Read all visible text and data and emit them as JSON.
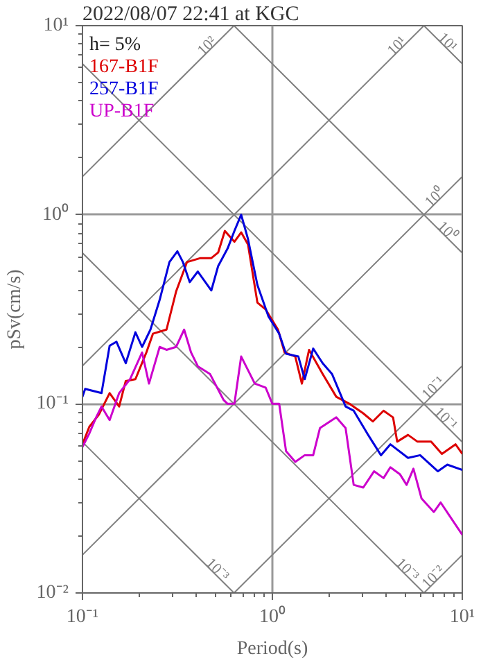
{
  "chart_data": {
    "type": "line",
    "title": "2022/08/07 22:41 at KGC",
    "xlabel": "Period(s)",
    "ylabel": "pSv(cm/s)",
    "log": "xy",
    "grid": true,
    "line_style": "solid",
    "marker": "none",
    "xlim": [
      0.1,
      10
    ],
    "ylim": [
      0.01,
      10
    ],
    "xticks": [
      {
        "value": 0.1,
        "label": "10⁻¹"
      },
      {
        "value": 1,
        "label": "10⁰"
      },
      {
        "value": 10,
        "label": "10¹"
      }
    ],
    "yticks": [
      {
        "value": 0.01,
        "label": "10⁻²"
      },
      {
        "value": 0.1,
        "label": "10⁻¹"
      },
      {
        "value": 1,
        "label": "10⁰"
      },
      {
        "value": 10,
        "label": "10¹"
      }
    ],
    "annotations": [
      "h= 5%"
    ],
    "series": [
      {
        "type": "line",
        "name": "10²",
        "color": "#808080",
        "x": [
          0.1,
          0.628
        ],
        "values": [
          1.592,
          10
        ]
      },
      {
        "type": "line",
        "name": "10¹",
        "color": "#808080",
        "x": [
          0.1,
          6.28
        ],
        "values": [
          0.159,
          10
        ]
      },
      {
        "type": "line",
        "name": "10⁰",
        "color": "#808080",
        "x": [
          0.1,
          10
        ],
        "values": [
          0.0159,
          1.592
        ]
      },
      {
        "type": "line",
        "name": "10⁻¹",
        "color": "#808080",
        "x": [
          0.628,
          10
        ],
        "values": [
          0.01,
          0.159
        ]
      },
      {
        "type": "line",
        "name": "10⁻²",
        "color": "#808080",
        "x": [
          6.28,
          10
        ],
        "values": [
          0.01,
          0.0159
        ]
      },
      {
        "type": "line",
        "name": "10¹",
        "color": "#808080",
        "x": [
          6.28,
          10
        ],
        "values": [
          10,
          6.283
        ]
      },
      {
        "type": "line",
        "name": "10⁰",
        "color": "#808080",
        "x": [
          0.628,
          10
        ],
        "values": [
          10,
          0.628
        ]
      },
      {
        "type": "line",
        "name": "10⁻¹",
        "color": "#808080",
        "x": [
          0.1,
          10
        ],
        "values": [
          6.283,
          0.0628
        ]
      },
      {
        "type": "line",
        "name": "10⁻³",
        "color": "#808080",
        "x": [
          0.1,
          6.28
        ],
        "values": [
          0.628,
          0.01
        ]
      },
      {
        "type": "line",
        "name": "10⁻³",
        "color": "#808080",
        "x": [
          0.1,
          0.628
        ],
        "values": [
          0.0628,
          0.01
        ]
      },
      {
        "name": "167-B1F",
        "color": "#dd0000",
        "x": [
          0.1,
          0.1086,
          0.122,
          0.139,
          0.156,
          0.169,
          0.19,
          0.217,
          0.235,
          0.277,
          0.311,
          0.355,
          0.418,
          0.477,
          0.518,
          0.562,
          0.631,
          0.685,
          0.744,
          0.834,
          0.921,
          1.07,
          1.16,
          1.32,
          1.43,
          1.56,
          1.84,
          2.17,
          2.55,
          3.01,
          3.38,
          3.85,
          4.32,
          4.54,
          5.18,
          5.81,
          6.85,
          7.81,
          9.21,
          10
        ],
        "values": [
          0.0611,
          0.0756,
          0.0877,
          0.114,
          0.0968,
          0.132,
          0.135,
          0.187,
          0.235,
          0.247,
          0.392,
          0.562,
          0.59,
          0.59,
          0.631,
          0.821,
          0.72,
          0.807,
          0.696,
          0.343,
          0.316,
          0.247,
          0.187,
          0.178,
          0.128,
          0.193,
          0.144,
          0.109,
          0.1,
          0.0891,
          0.0807,
          0.092,
          0.0848,
          0.0631,
          0.0685,
          0.0631,
          0.0631,
          0.0544,
          0.0611,
          0.0544
        ]
      },
      {
        "name": "257-B1F",
        "color": "#0000dd",
        "x": [
          0.1,
          0.1033,
          0.126,
          0.139,
          0.151,
          0.169,
          0.19,
          0.206,
          0.228,
          0.255,
          0.287,
          0.316,
          0.338,
          0.367,
          0.405,
          0.477,
          0.518,
          0.581,
          0.631,
          0.685,
          0.744,
          0.834,
          0.952,
          1.086,
          1.18,
          1.37,
          1.48,
          1.64,
          1.84,
          2.06,
          2.43,
          2.68,
          3.16,
          3.73,
          4.18,
          5.18,
          6.0,
          7.44,
          8.34,
          10
        ],
        "values": [
          0.109,
          0.12,
          0.114,
          0.203,
          0.213,
          0.164,
          0.239,
          0.2,
          0.247,
          0.355,
          0.562,
          0.641,
          0.562,
          0.44,
          0.501,
          0.398,
          0.535,
          0.663,
          0.821,
          1.0,
          0.744,
          0.425,
          0.291,
          0.235,
          0.184,
          0.178,
          0.135,
          0.196,
          0.164,
          0.144,
          0.0968,
          0.092,
          0.0697,
          0.0535,
          0.0611,
          0.0518,
          0.0535,
          0.044,
          0.0477,
          0.0447
        ]
      },
      {
        "name": "UP-B1F",
        "color": "#cc00cc",
        "x": [
          0.1,
          0.1086,
          0.118,
          0.126,
          0.139,
          0.156,
          0.178,
          0.206,
          0.224,
          0.255,
          0.277,
          0.311,
          0.343,
          0.373,
          0.405,
          0.469,
          0.553,
          0.581,
          0.631,
          0.685,
          0.808,
          0.921,
          1.0,
          1.086,
          1.18,
          1.32,
          1.48,
          1.64,
          1.78,
          2.17,
          2.43,
          2.68,
          3.01,
          3.43,
          3.85,
          4.18,
          4.69,
          5.09,
          5.53,
          6.1,
          7.08,
          7.69,
          8.48,
          10
        ],
        "values": [
          0.0591,
          0.0697,
          0.0848,
          0.0968,
          0.0821,
          0.114,
          0.135,
          0.187,
          0.128,
          0.2,
          0.193,
          0.2,
          0.247,
          0.187,
          0.158,
          0.144,
          0.105,
          0.1,
          0.1,
          0.178,
          0.128,
          0.122,
          0.1,
          0.1,
          0.0562,
          0.0493,
          0.0535,
          0.0535,
          0.0744,
          0.0848,
          0.0744,
          0.0373,
          0.0361,
          0.044,
          0.0405,
          0.0462,
          0.0425,
          0.0373,
          0.0454,
          0.0316,
          0.0268,
          0.0301,
          0.026,
          0.0203
        ]
      }
    ]
  }
}
